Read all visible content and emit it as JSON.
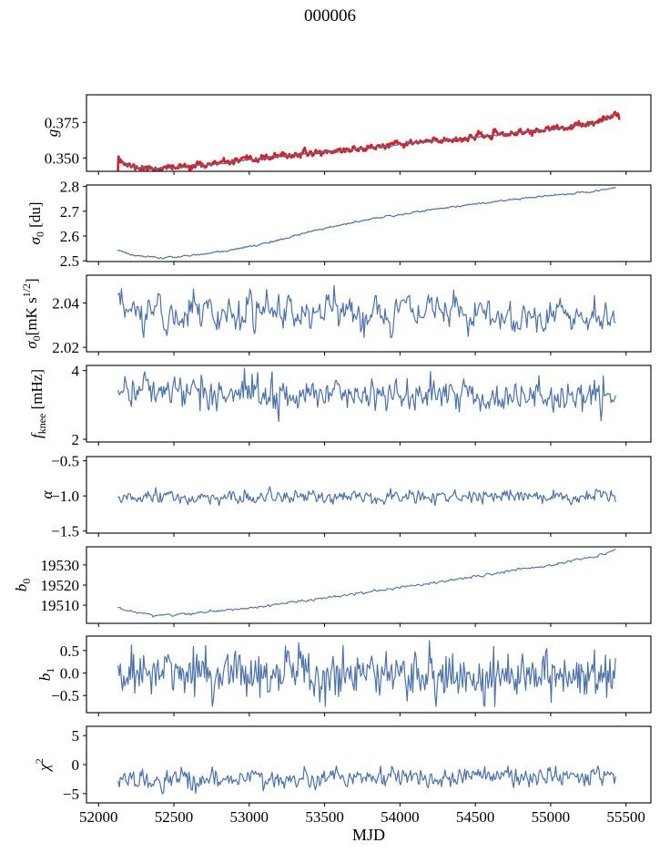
{
  "figure": {
    "title": "000006",
    "background": "#ffffff"
  },
  "chart_data": {
    "type": "line",
    "title": "000006",
    "subtitle": "",
    "xlabel": "MJD",
    "grid": false,
    "legend": "none",
    "xlim": [
      51920,
      55665
    ],
    "xticks": [
      {
        "v": 52000,
        "label": "52000"
      },
      {
        "v": 52500,
        "label": "52500"
      },
      {
        "v": 53000,
        "label": "53000"
      },
      {
        "v": 53500,
        "label": "53500"
      },
      {
        "v": 54000,
        "label": "54000"
      },
      {
        "v": 54500,
        "label": "54500"
      },
      {
        "v": 55000,
        "label": "55000"
      },
      {
        "v": 55500,
        "label": "55500"
      }
    ],
    "colors": {
      "data_line": "#4c72a8",
      "overlay_line": "#e51a1a",
      "axis": "#000000"
    },
    "panels": [
      {
        "name": "g",
        "ylabel": [
          [
            "g",
            "i"
          ]
        ],
        "ylim": [
          0.3406,
          0.3944
        ],
        "yticks": [
          {
            "v": 0.35,
            "label": "0.350"
          },
          {
            "v": 0.375,
            "label": "0.375"
          }
        ],
        "series": [
          {
            "name": "g-measured-red",
            "color": "#e51a1a",
            "width": 2.6,
            "n": 720,
            "sigma": 0.0011,
            "rho": 0.5,
            "seed": 11,
            "anchors": [
              [
                52128,
                0.3405
              ],
              [
                52129,
                0.3535
              ],
              [
                52140,
                0.3502
              ],
              [
                52160,
                0.3472
              ],
              [
                52185,
                0.3452
              ],
              [
                52230,
                0.3437
              ],
              [
                52300,
                0.3428
              ],
              [
                52400,
                0.3426
              ],
              [
                52500,
                0.3433
              ],
              [
                52650,
                0.3447
              ],
              [
                52800,
                0.3462
              ],
              [
                53000,
                0.3487
              ],
              [
                53200,
                0.3512
              ],
              [
                53400,
                0.3533
              ],
              [
                53600,
                0.3552
              ],
              [
                53800,
                0.3572
              ],
              [
                54000,
                0.3596
              ],
              [
                54200,
                0.3617
              ],
              [
                54400,
                0.3635
              ],
              [
                54600,
                0.3658
              ],
              [
                54800,
                0.3678
              ],
              [
                55000,
                0.3702
              ],
              [
                55150,
                0.372
              ],
              [
                55300,
                0.3747
              ],
              [
                55380,
                0.3775
              ],
              [
                55420,
                0.3805
              ],
              [
                55445,
                0.3822
              ],
              [
                55455,
                0.379
              ]
            ]
          },
          {
            "name": "g-smoothed-blue",
            "color": "#4c72a8",
            "width": 1.3,
            "n": 460,
            "sigma": 0.00035,
            "rho": 0.5,
            "seed": 12,
            "anchors": [
              [
                52140,
                0.3498
              ],
              [
                52160,
                0.347
              ],
              [
                52185,
                0.3452
              ],
              [
                52230,
                0.3437
              ],
              [
                52300,
                0.3428
              ],
              [
                52400,
                0.3426
              ],
              [
                52500,
                0.3433
              ],
              [
                52650,
                0.3447
              ],
              [
                52800,
                0.3462
              ],
              [
                53000,
                0.3487
              ],
              [
                53200,
                0.3512
              ],
              [
                53400,
                0.3533
              ],
              [
                53600,
                0.3552
              ],
              [
                53800,
                0.3572
              ],
              [
                54000,
                0.3596
              ],
              [
                54200,
                0.3617
              ],
              [
                54400,
                0.3635
              ],
              [
                54600,
                0.3658
              ],
              [
                54800,
                0.3678
              ],
              [
                55000,
                0.3702
              ],
              [
                55150,
                0.372
              ],
              [
                55300,
                0.3747
              ],
              [
                55380,
                0.3775
              ],
              [
                55420,
                0.3805
              ],
              [
                55445,
                0.3818
              ]
            ]
          }
        ]
      },
      {
        "name": "sigma0-du",
        "ylabel": [
          [
            "σ",
            "i"
          ],
          [
            "0",
            "sub"
          ],
          [
            " [du]",
            "n"
          ]
        ],
        "ylim": [
          2.497,
          2.806
        ],
        "yticks": [
          {
            "v": 2.5,
            "label": "2.5"
          },
          {
            "v": 2.6,
            "label": "2.6"
          },
          {
            "v": 2.7,
            "label": "2.7"
          },
          {
            "v": 2.8,
            "label": "2.8"
          }
        ],
        "series": [
          {
            "name": "sigma0-du-line",
            "color": "#4c72a8",
            "width": 1.2,
            "n": 470,
            "sigma": 0.002,
            "rho": 0.5,
            "seed": 21,
            "anchors": [
              [
                52130,
                2.545
              ],
              [
                52200,
                2.528
              ],
              [
                52300,
                2.5155
              ],
              [
                52400,
                2.512
              ],
              [
                52520,
                2.516
              ],
              [
                52650,
                2.524
              ],
              [
                52800,
                2.536
              ],
              [
                53000,
                2.556
              ],
              [
                53250,
                2.592
              ],
              [
                53520,
                2.635
              ],
              [
                53800,
                2.668
              ],
              [
                54100,
                2.697
              ],
              [
                54400,
                2.722
              ],
              [
                54700,
                2.744
              ],
              [
                55000,
                2.763
              ],
              [
                55200,
                2.775
              ],
              [
                55350,
                2.786
              ],
              [
                55430,
                2.795
              ]
            ]
          }
        ]
      },
      {
        "name": "sigma0-mks",
        "ylabel": [
          [
            "σ",
            "i"
          ],
          [
            "0",
            "sub"
          ],
          [
            "[mK s",
            "n"
          ],
          [
            "1/2",
            "sup"
          ],
          [
            "]",
            "n"
          ]
        ],
        "ylim": [
          2.018,
          2.0525
        ],
        "yticks": [
          {
            "v": 2.02,
            "label": "2.02"
          },
          {
            "v": 2.04,
            "label": "2.04"
          }
        ],
        "series": [
          {
            "name": "sigma0-mks-line",
            "color": "#4c72a8",
            "width": 1.2,
            "n": 450,
            "sigma": 0.0042,
            "rho": 0.5,
            "seed": 31,
            "clip": [
              2.0245,
              2.048
            ],
            "anchors": [
              [
                52130,
                2.042
              ],
              [
                52180,
                2.036
              ],
              [
                53000,
                2.0355
              ],
              [
                54000,
                2.036
              ],
              [
                55430,
                2.0345
              ]
            ]
          }
        ]
      },
      {
        "name": "fknee",
        "ylabel": [
          [
            "f",
            "i"
          ],
          [
            "knee",
            "sub"
          ],
          [
            " [mHz]",
            "n"
          ]
        ],
        "ylim": [
          1.92,
          4.15
        ],
        "yticks": [
          {
            "v": 2,
            "label": "2"
          },
          {
            "v": 4,
            "label": "4"
          }
        ],
        "series": [
          {
            "name": "fknee-line",
            "color": "#4c72a8",
            "width": 1.2,
            "n": 450,
            "sigma": 0.24,
            "rho": 0.28,
            "seed": 41,
            "clip": [
              2.52,
              4.12
            ],
            "anchors": [
              [
                52130,
                3.55
              ],
              [
                52400,
                3.43
              ],
              [
                52900,
                3.36
              ],
              [
                53500,
                3.31
              ],
              [
                54500,
                3.28
              ],
              [
                55430,
                3.26
              ]
            ]
          }
        ]
      },
      {
        "name": "alpha",
        "ylabel": [
          [
            "α",
            "i"
          ]
        ],
        "ylim": [
          -1.53,
          -0.44
        ],
        "yticks": [
          {
            "v": -0.5,
            "label": "−0.5"
          },
          {
            "v": -1.0,
            "label": "−1.0"
          },
          {
            "v": -1.5,
            "label": "−1.5"
          }
        ],
        "series": [
          {
            "name": "alpha-line",
            "color": "#4c72a8",
            "width": 1.2,
            "n": 450,
            "sigma": 0.048,
            "rho": 0.35,
            "seed": 51,
            "clip": [
              -1.27,
              -0.8
            ],
            "anchors": [
              [
                52130,
                -1.1
              ],
              [
                52200,
                -1.03
              ],
              [
                53000,
                -1.025
              ],
              [
                55430,
                -1.02
              ]
            ]
          }
        ]
      },
      {
        "name": "b0",
        "ylabel": [
          [
            "b",
            "i"
          ],
          [
            "0",
            "sub"
          ]
        ],
        "ylim": [
          19501,
          19539
        ],
        "yticks": [
          {
            "v": 19510,
            "label": "19510"
          },
          {
            "v": 19520,
            "label": "19520"
          },
          {
            "v": 19530,
            "label": "19530"
          }
        ],
        "series": [
          {
            "name": "b0-line",
            "color": "#4c72a8",
            "width": 1.1,
            "n": 470,
            "sigma": 0.35,
            "rho": 0.5,
            "seed": 61,
            "anchors": [
              [
                52130,
                19509
              ],
              [
                52230,
                19506.5
              ],
              [
                52380,
                19505
              ],
              [
                52550,
                19505.5
              ],
              [
                52750,
                19506.8
              ],
              [
                53000,
                19508.8
              ],
              [
                53300,
                19511.5
              ],
              [
                53600,
                19514.5
              ],
              [
                53900,
                19517.5
              ],
              [
                54200,
                19520.8
              ],
              [
                54500,
                19524.2
              ],
              [
                54800,
                19527.8
              ],
              [
                55100,
                19531.3
              ],
              [
                55300,
                19534.3
              ],
              [
                55430,
                19537
              ]
            ]
          }
        ]
      },
      {
        "name": "b1",
        "ylabel": [
          [
            "b",
            "i"
          ],
          [
            "1",
            "sub"
          ]
        ],
        "ylim": [
          -0.88,
          0.82
        ],
        "yticks": [
          {
            "v": 0.5,
            "label": "0.5"
          },
          {
            "v": 0.0,
            "label": "0.0"
          },
          {
            "v": -0.5,
            "label": "−0.5"
          }
        ],
        "series": [
          {
            "name": "b1-line",
            "color": "#4c72a8",
            "width": 1.2,
            "n": 450,
            "sigma": 0.28,
            "rho": 0.12,
            "seed": 71,
            "clip": [
              -0.74,
              0.72
            ],
            "anchors": [
              [
                52130,
                0.05
              ],
              [
                52200,
                0.0
              ],
              [
                55430,
                -0.03
              ]
            ]
          }
        ]
      },
      {
        "name": "chi2",
        "ylabel": [
          [
            "χ",
            "i"
          ],
          [
            "2",
            "sup"
          ]
        ],
        "ylim": [
          -6.6,
          6.6
        ],
        "yticks": [
          {
            "v": 5,
            "label": "5"
          },
          {
            "v": 0,
            "label": "0"
          },
          {
            "v": -5,
            "label": "−5"
          }
        ],
        "series": [
          {
            "name": "chi2-line",
            "color": "#4c72a8",
            "width": 1.2,
            "n": 450,
            "sigma": 0.88,
            "rho": 0.35,
            "seed": 81,
            "clip": [
              -5.7,
              -0.25
            ],
            "anchors": [
              [
                52130,
                -2.7
              ],
              [
                53200,
                -2.35
              ],
              [
                54200,
                -2.05
              ],
              [
                55430,
                -1.7
              ]
            ]
          }
        ]
      }
    ]
  }
}
